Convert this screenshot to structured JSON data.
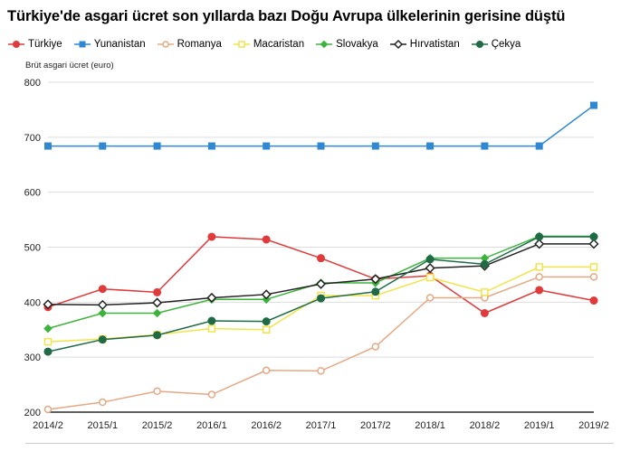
{
  "chart_data": {
    "type": "line",
    "title": "Türkiye'de asgari ücret son yıllarda bazı Doğu Avrupa ülkelerinin gerisine düştü",
    "ylabel": "Brüt asgari ücret (euro)",
    "xlabel": "",
    "categories": [
      "2014/2",
      "2015/1",
      "2015/2",
      "2016/1",
      "2016/2",
      "2017/1",
      "2017/2",
      "2018/1",
      "2018/2",
      "2019/1",
      "2019/2"
    ],
    "ylim": [
      200,
      800
    ],
    "yticks": [
      200,
      300,
      400,
      500,
      600,
      700,
      800
    ],
    "grid": "horizontal",
    "legend_position": "top",
    "series": [
      {
        "name": "Türkiye",
        "color": "#e03a3a",
        "marker": "circle-filled",
        "values": [
          391,
          424,
          418,
          519,
          514,
          480,
          442,
          448,
          380,
          422,
          403
        ]
      },
      {
        "name": "Yunanistan",
        "color": "#2f88d1",
        "marker": "square-filled",
        "values": [
          684,
          684,
          684,
          684,
          684,
          684,
          684,
          684,
          684,
          684,
          758
        ]
      },
      {
        "name": "Romanya",
        "color": "#e6a884",
        "marker": "circle-open",
        "values": [
          205,
          218,
          238,
          232,
          276,
          275,
          319,
          408,
          408,
          446,
          446
        ]
      },
      {
        "name": "Macaristan",
        "color": "#f2e34a",
        "marker": "square-open",
        "values": [
          328,
          333,
          341,
          352,
          350,
          412,
          412,
          445,
          418,
          464,
          464
        ]
      },
      {
        "name": "Slovakya",
        "color": "#3cb43c",
        "marker": "diamond-filled",
        "values": [
          352,
          380,
          380,
          405,
          405,
          435,
          435,
          480,
          480,
          520,
          520
        ]
      },
      {
        "name": "Hırvatistan",
        "color": "#222222",
        "marker": "diamond-open",
        "values": [
          396,
          395,
          399,
          408,
          414,
          433,
          442,
          462,
          466,
          506,
          506
        ]
      },
      {
        "name": "Çekya",
        "color": "#1f6b46",
        "marker": "circle-filled",
        "values": [
          310,
          332,
          340,
          366,
          365,
          407,
          419,
          478,
          469,
          519,
          519
        ]
      }
    ]
  }
}
